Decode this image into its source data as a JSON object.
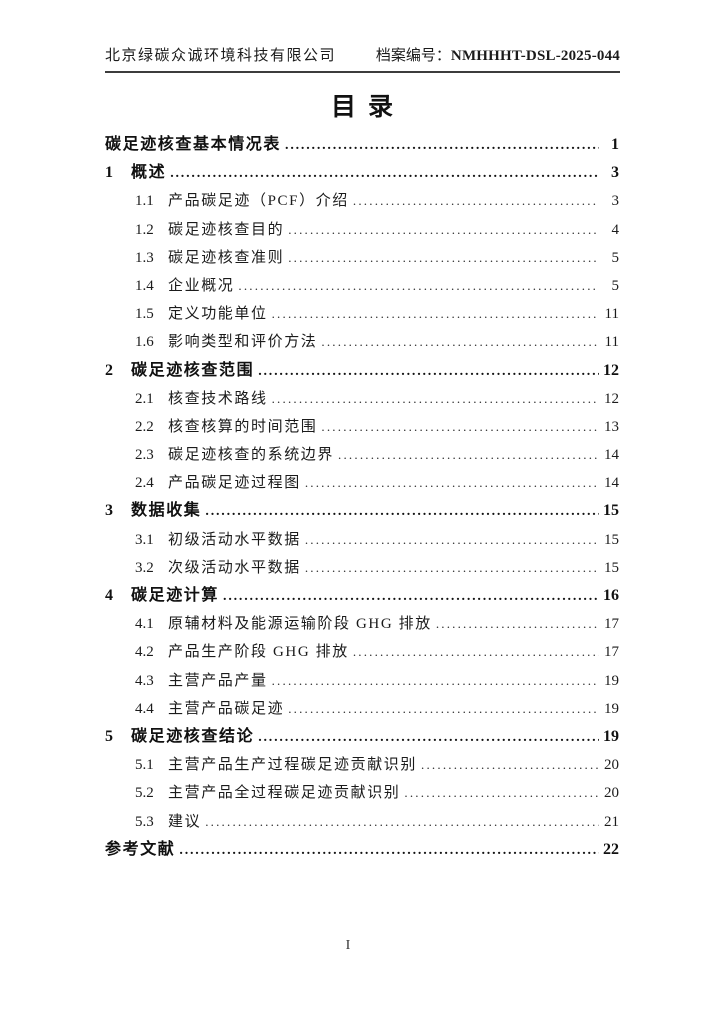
{
  "header": {
    "company": "北京绿碳众诚环境科技有限公司",
    "file_label": "档案编号：",
    "file_number": "NMHHHT-DSL-2025-044"
  },
  "title": "目录",
  "toc": [
    {
      "level": 0,
      "bold": true,
      "num": "",
      "label": "碳足迹核查基本情况表",
      "page": "1"
    },
    {
      "level": 1,
      "bold": true,
      "num": "1",
      "label": "概述",
      "page": "3"
    },
    {
      "level": 2,
      "bold": false,
      "num": "1.1",
      "label": "产品碳足迹（PCF）介绍",
      "page": "3"
    },
    {
      "level": 2,
      "bold": false,
      "num": "1.2",
      "label": "碳足迹核查目的",
      "page": "4"
    },
    {
      "level": 2,
      "bold": false,
      "num": "1.3",
      "label": "碳足迹核查准则",
      "page": "5"
    },
    {
      "level": 2,
      "bold": false,
      "num": "1.4",
      "label": "企业概况",
      "page": "5"
    },
    {
      "level": 2,
      "bold": false,
      "num": "1.5",
      "label": "定义功能单位",
      "page": "11"
    },
    {
      "level": 2,
      "bold": false,
      "num": "1.6",
      "label": "影响类型和评价方法",
      "page": "11"
    },
    {
      "level": 1,
      "bold": true,
      "num": "2",
      "label": "碳足迹核查范围",
      "page": "12"
    },
    {
      "level": 2,
      "bold": false,
      "num": "2.1",
      "label": "核查技术路线",
      "page": "12"
    },
    {
      "level": 2,
      "bold": false,
      "num": "2.2",
      "label": "核查核算的时间范围",
      "page": "13"
    },
    {
      "level": 2,
      "bold": false,
      "num": "2.3",
      "label": "碳足迹核查的系统边界",
      "page": "14"
    },
    {
      "level": 2,
      "bold": false,
      "num": "2.4",
      "label": "产品碳足迹过程图",
      "page": "14"
    },
    {
      "level": 1,
      "bold": true,
      "num": "3",
      "label": "数据收集",
      "page": "15"
    },
    {
      "level": 2,
      "bold": false,
      "num": "3.1",
      "label": "初级活动水平数据",
      "page": "15"
    },
    {
      "level": 2,
      "bold": false,
      "num": "3.2",
      "label": "次级活动水平数据",
      "page": "15"
    },
    {
      "level": 1,
      "bold": true,
      "num": "4",
      "label": "碳足迹计算",
      "page": "16"
    },
    {
      "level": 2,
      "bold": false,
      "num": "4.1",
      "label": "原辅材料及能源运输阶段 GHG 排放",
      "page": "17"
    },
    {
      "level": 2,
      "bold": false,
      "num": "4.2",
      "label": "产品生产阶段 GHG 排放",
      "page": "17"
    },
    {
      "level": 2,
      "bold": false,
      "num": "4.3",
      "label": "主营产品产量",
      "page": "19"
    },
    {
      "level": 2,
      "bold": false,
      "num": "4.4",
      "label": "主营产品碳足迹",
      "page": "19"
    },
    {
      "level": 1,
      "bold": true,
      "num": "5",
      "label": "碳足迹核查结论",
      "page": "19"
    },
    {
      "level": 2,
      "bold": false,
      "num": "5.1",
      "label": "主营产品生产过程碳足迹贡献识别",
      "page": "20"
    },
    {
      "level": 2,
      "bold": false,
      "num": "5.2",
      "label": "主营产品全过程碳足迹贡献识别",
      "page": "20"
    },
    {
      "level": 2,
      "bold": false,
      "num": "5.3",
      "label": "建议",
      "page": "21"
    },
    {
      "level": 0,
      "bold": true,
      "num": "",
      "label": "参考文献",
      "page": "22"
    }
  ],
  "footer": {
    "page_number": "I"
  }
}
